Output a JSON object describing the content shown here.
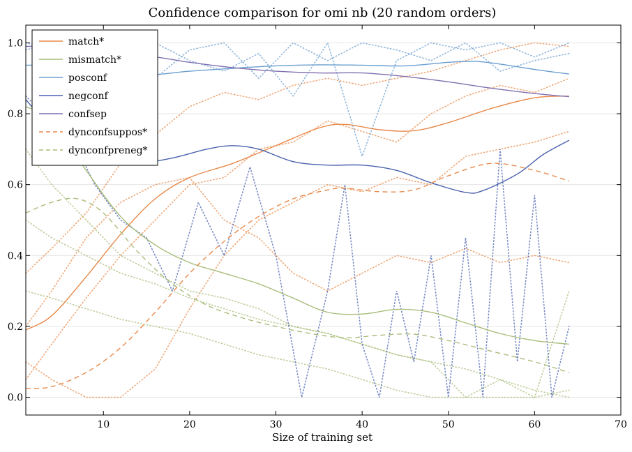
{
  "chart_data": {
    "type": "line",
    "title": "Confidence comparison for omi nb (20 random orders)",
    "xlabel": "Size of training set",
    "ylabel": "",
    "xlim": [
      1,
      70
    ],
    "ylim": [
      -0.05,
      1.05
    ],
    "x_ticks": [
      10,
      20,
      30,
      40,
      50,
      60,
      70
    ],
    "x_tick_labels": [
      "10",
      "20",
      "30",
      "40",
      "50",
      "60",
      "70"
    ],
    "y_ticks": [
      0.0,
      0.2,
      0.4,
      0.6,
      0.8,
      1.0
    ],
    "y_tick_labels": [
      "0.0",
      "0.2",
      "0.4",
      "0.6",
      "0.8",
      "1.0"
    ],
    "grid": "horizontal",
    "legend_position": "top-left",
    "series": [
      {
        "name": "match*",
        "color": "#e8894a",
        "style": "solid",
        "x": [
          1,
          4,
          8,
          12,
          16,
          20,
          25,
          30,
          35,
          38,
          42,
          46,
          50,
          55,
          60,
          64
        ],
        "y": [
          0.19,
          0.23,
          0.34,
          0.46,
          0.56,
          0.62,
          0.66,
          0.71,
          0.76,
          0.77,
          0.755,
          0.752,
          0.775,
          0.815,
          0.845,
          0.85
        ]
      },
      {
        "name": "mismatch*",
        "color": "#a9bd7a",
        "style": "solid",
        "x": [
          1,
          4,
          8,
          12,
          16,
          20,
          24,
          28,
          32,
          36,
          40,
          44,
          48,
          52,
          56,
          60,
          64
        ],
        "y": [
          0.82,
          0.78,
          0.64,
          0.51,
          0.43,
          0.38,
          0.35,
          0.32,
          0.28,
          0.24,
          0.235,
          0.248,
          0.24,
          0.21,
          0.18,
          0.16,
          0.15
        ]
      },
      {
        "name": "posconf",
        "color": "#6a9ecf",
        "style": "solid",
        "x": [
          1,
          6,
          10,
          15,
          20,
          25,
          30,
          35,
          40,
          45,
          50,
          53,
          56,
          60,
          64
        ],
        "y": [
          0.937,
          0.937,
          0.925,
          0.91,
          0.92,
          0.928,
          0.935,
          0.938,
          0.937,
          0.935,
          0.945,
          0.948,
          0.94,
          0.925,
          0.912
        ]
      },
      {
        "name": "negconf",
        "color": "#4a62ad",
        "style": "solid",
        "x": [
          1,
          4,
          8,
          11,
          14,
          18,
          22,
          25,
          28,
          32,
          36,
          40,
          44,
          48,
          52,
          54,
          58,
          61,
          64
        ],
        "y": [
          0.84,
          0.76,
          0.7,
          0.665,
          0.66,
          0.675,
          0.7,
          0.71,
          0.7,
          0.665,
          0.655,
          0.655,
          0.64,
          0.605,
          0.578,
          0.583,
          0.63,
          0.685,
          0.725
        ]
      },
      {
        "name": "confsep",
        "color": "#7f6fb0",
        "style": "solid",
        "x": [
          1,
          5,
          10,
          16,
          20,
          25,
          30,
          35,
          40,
          45,
          50,
          55,
          60,
          64
        ],
        "y": [
          0.99,
          0.99,
          0.975,
          0.96,
          0.945,
          0.93,
          0.92,
          0.915,
          0.915,
          0.905,
          0.89,
          0.872,
          0.857,
          0.848
        ]
      },
      {
        "name": "dynconfsuppos*",
        "color": "#e8894a",
        "style": "dashed",
        "x": [
          1,
          4,
          8,
          12,
          16,
          20,
          24,
          28,
          32,
          36,
          38,
          42,
          46,
          50,
          55,
          60,
          64
        ],
        "y": [
          0.025,
          0.03,
          0.07,
          0.14,
          0.24,
          0.35,
          0.44,
          0.51,
          0.56,
          0.585,
          0.59,
          0.58,
          0.585,
          0.625,
          0.66,
          0.64,
          0.61
        ]
      },
      {
        "name": "dynconfpreneg*",
        "color": "#a9bd7a",
        "style": "dashed",
        "x": [
          1,
          4,
          7,
          10,
          14,
          18,
          22,
          26,
          30,
          34,
          38,
          42,
          46,
          50,
          55,
          60,
          64
        ],
        "y": [
          0.52,
          0.55,
          0.56,
          0.52,
          0.41,
          0.32,
          0.26,
          0.225,
          0.2,
          0.18,
          0.168,
          0.175,
          0.178,
          0.16,
          0.13,
          0.1,
          0.07
        ]
      }
    ],
    "background_traces": [
      {
        "color": "#e8894a",
        "x": [
          1,
          4,
          8,
          12,
          16,
          20,
          24,
          28,
          32,
          36,
          40,
          44,
          48,
          52,
          56,
          60,
          64
        ],
        "y": [
          0.35,
          0.42,
          0.52,
          0.66,
          0.74,
          0.82,
          0.86,
          0.84,
          0.88,
          0.9,
          0.88,
          0.9,
          0.92,
          0.95,
          0.98,
          1.0,
          0.99
        ]
      },
      {
        "color": "#e8894a",
        "x": [
          1,
          4,
          8,
          12,
          16,
          20,
          24,
          28,
          32,
          36,
          40,
          44,
          48,
          52,
          56,
          60,
          64
        ],
        "y": [
          0.05,
          0.15,
          0.28,
          0.4,
          0.5,
          0.6,
          0.62,
          0.7,
          0.72,
          0.78,
          0.75,
          0.72,
          0.8,
          0.85,
          0.88,
          0.86,
          0.9
        ]
      },
      {
        "color": "#e8894a",
        "x": [
          1,
          4,
          8,
          12,
          16,
          20,
          24,
          28,
          32,
          36,
          40,
          44,
          48,
          52,
          56,
          60,
          64
        ],
        "y": [
          0.1,
          0.05,
          0.0,
          0.0,
          0.08,
          0.25,
          0.4,
          0.5,
          0.55,
          0.6,
          0.58,
          0.62,
          0.6,
          0.68,
          0.7,
          0.72,
          0.75
        ]
      },
      {
        "color": "#e8894a",
        "x": [
          1,
          4,
          8,
          12,
          16,
          20,
          24,
          28,
          32,
          36,
          40,
          44,
          48,
          52,
          56,
          60,
          64
        ],
        "y": [
          0.2,
          0.3,
          0.45,
          0.55,
          0.6,
          0.62,
          0.5,
          0.45,
          0.35,
          0.3,
          0.35,
          0.4,
          0.38,
          0.42,
          0.38,
          0.4,
          0.38
        ]
      },
      {
        "color": "#a9bd7a",
        "x": [
          1,
          4,
          8,
          12,
          16,
          20,
          24,
          28,
          32,
          36,
          40,
          44,
          48,
          52,
          56,
          60,
          64
        ],
        "y": [
          0.7,
          0.6,
          0.5,
          0.4,
          0.35,
          0.3,
          0.28,
          0.25,
          0.2,
          0.18,
          0.15,
          0.12,
          0.1,
          0.0,
          0.0,
          0.0,
          0.02
        ]
      },
      {
        "color": "#a9bd7a",
        "x": [
          1,
          4,
          8,
          12,
          16,
          20,
          24,
          28,
          32,
          36,
          40,
          44,
          48,
          52,
          56,
          60,
          64
        ],
        "y": [
          0.5,
          0.45,
          0.4,
          0.35,
          0.32,
          0.28,
          0.25,
          0.22,
          0.2,
          0.18,
          0.15,
          0.12,
          0.1,
          0.08,
          0.05,
          0.02,
          0.0
        ]
      },
      {
        "color": "#a9bd7a",
        "x": [
          1,
          4,
          8,
          12,
          16,
          20,
          24,
          28,
          32,
          36,
          40,
          44,
          48,
          52,
          56,
          60,
          64
        ],
        "y": [
          0.3,
          0.28,
          0.25,
          0.22,
          0.2,
          0.18,
          0.15,
          0.12,
          0.1,
          0.08,
          0.05,
          0.02,
          0.0,
          0.0,
          0.05,
          0.0,
          0.3
        ]
      },
      {
        "color": "#6a9ecf",
        "x": [
          1,
          4,
          8,
          12,
          16,
          20,
          24,
          28,
          32,
          36,
          40,
          44,
          48,
          52,
          56,
          60,
          64
        ],
        "y": [
          1.0,
          0.98,
          0.9,
          0.98,
          1.0,
          0.95,
          0.92,
          0.97,
          0.85,
          1.0,
          0.68,
          0.95,
          1.0,
          0.98,
          1.0,
          0.96,
          1.0
        ]
      },
      {
        "color": "#6a9ecf",
        "x": [
          1,
          4,
          8,
          12,
          16,
          20,
          24,
          28,
          32,
          36,
          40,
          44,
          48,
          52,
          56,
          60,
          64
        ],
        "y": [
          0.98,
          1.0,
          0.95,
          0.85,
          0.9,
          0.98,
          1.0,
          0.9,
          1.0,
          0.95,
          1.0,
          0.98,
          0.95,
          1.0,
          0.92,
          0.95,
          0.97
        ]
      },
      {
        "color": "#4a62ad",
        "x": [
          1,
          3,
          6,
          9,
          12,
          15,
          18,
          21,
          24,
          27,
          30,
          33,
          36,
          38,
          40,
          42,
          44,
          46,
          48,
          50,
          52,
          54,
          56,
          58,
          60,
          62,
          64
        ],
        "y": [
          0.85,
          0.8,
          0.75,
          0.6,
          0.5,
          0.45,
          0.3,
          0.55,
          0.4,
          0.65,
          0.4,
          0.0,
          0.3,
          0.6,
          0.15,
          0.0,
          0.3,
          0.1,
          0.4,
          0.0,
          0.45,
          0.0,
          0.7,
          0.1,
          0.57,
          0.0,
          0.2
        ]
      }
    ]
  }
}
